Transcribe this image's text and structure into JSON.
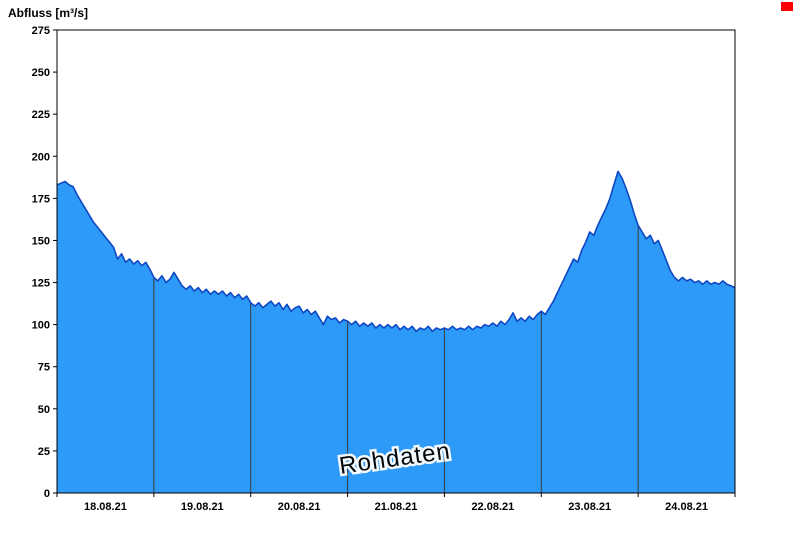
{
  "chart": {
    "title": "Abfluss [m³/s]",
    "watermark": "Rohdaten"
  },
  "chart_data": {
    "type": "area",
    "title": "Abfluss [m³/s]",
    "ylabel": "Abfluss [m³/s]",
    "watermark": "Rohdaten",
    "x_unit": "hours since 18.08.21 00:00",
    "x_start": 0,
    "x_step": 1,
    "x_range_hours": [
      0,
      168
    ],
    "ylim": [
      0,
      275
    ],
    "y_ticks": [
      0,
      25,
      50,
      75,
      100,
      125,
      150,
      175,
      200,
      225,
      250,
      275
    ],
    "x_tick_labels": [
      "18.08.21",
      "19.08.21",
      "20.08.21",
      "21.08.21",
      "22.08.21",
      "23.08.21",
      "24.08.21"
    ],
    "x_tick_positions_hours": [
      12,
      36,
      60,
      84,
      108,
      132,
      156
    ],
    "day_boundary_hours": [
      24,
      48,
      72,
      96,
      120,
      144
    ],
    "values": [
      183,
      184,
      185,
      183,
      182,
      177,
      173,
      169,
      165,
      161,
      158,
      155,
      152,
      149,
      146,
      139,
      142,
      137,
      139,
      136,
      138,
      135,
      137,
      133,
      128,
      126,
      129,
      125,
      127,
      131,
      127,
      123,
      121,
      123,
      120,
      122,
      119,
      121,
      118,
      120,
      118,
      120,
      117,
      119,
      116,
      118,
      115,
      117,
      113,
      111,
      113,
      110,
      112,
      114,
      111,
      113,
      109,
      112,
      108,
      110,
      111,
      107,
      109,
      106,
      108,
      104,
      100,
      105,
      103,
      104,
      101,
      103,
      102,
      100,
      102,
      99,
      101,
      99,
      101,
      98,
      100,
      98,
      100,
      98,
      100,
      97,
      99,
      97,
      99,
      96,
      98,
      97,
      99,
      96,
      98,
      97,
      98,
      97,
      99,
      97,
      98,
      97,
      99,
      97,
      99,
      98,
      100,
      99,
      101,
      99,
      102,
      100,
      103,
      107,
      102,
      104,
      102,
      105,
      103,
      106,
      108,
      106,
      110,
      114,
      119,
      124,
      129,
      134,
      139,
      137,
      144,
      149,
      155,
      153,
      159,
      164,
      169,
      175,
      183,
      191,
      187,
      181,
      174,
      166,
      159,
      155,
      151,
      153,
      148,
      150,
      144,
      138,
      132,
      128,
      126,
      128,
      126,
      127,
      125,
      126,
      124,
      126,
      124,
      125,
      124,
      126,
      124,
      123,
      122
    ],
    "colors": {
      "fill": "#2e9af8",
      "line": "#0d47c4",
      "frame": "#000000",
      "day_line": "#3c3c3c",
      "text": "#000000",
      "watermark_fill": "#8f8f8f",
      "watermark_stroke": "#ffffff",
      "indicator": "#ff0000"
    }
  }
}
